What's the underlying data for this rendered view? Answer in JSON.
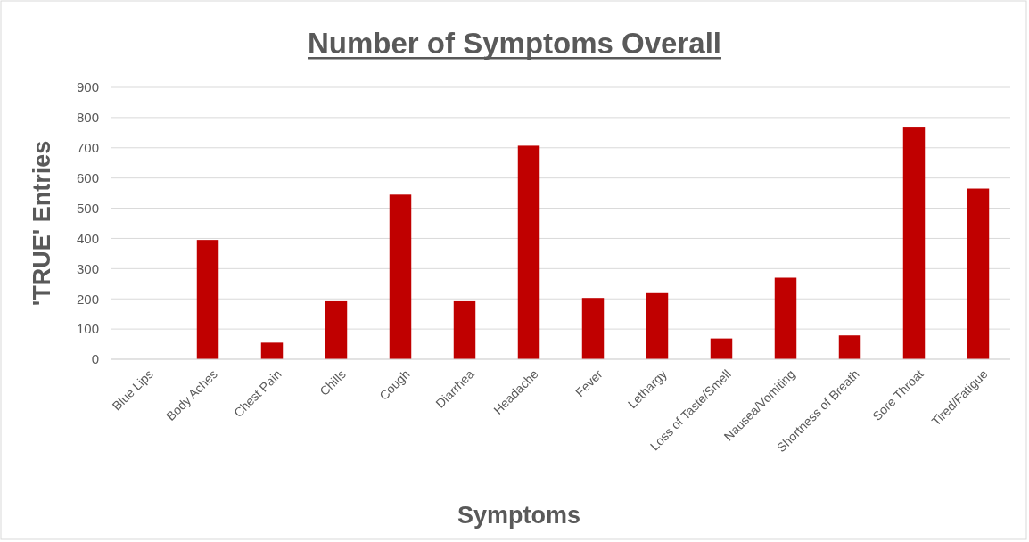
{
  "chart_data": {
    "type": "bar",
    "title": "Number of Symptoms Overall",
    "xlabel": "Symptoms",
    "ylabel": "'TRUE' Entries",
    "categories": [
      "Blue Lips",
      "Body Aches",
      "Chest Pain",
      "Chills",
      "Cough",
      "Diarrhea",
      "Headache",
      "Fever",
      "Lethargy",
      "Loss of Taste/Smell",
      "Nausea/Vomiting",
      "Shortness of Breath",
      "Sore Throat",
      "Tired/Fatigue"
    ],
    "values": [
      0,
      395,
      55,
      192,
      545,
      192,
      707,
      203,
      219,
      69,
      270,
      79,
      767,
      565
    ],
    "color": "#c00000",
    "ylim": [
      0,
      900
    ],
    "yticks": [
      0,
      100,
      200,
      300,
      400,
      500,
      600,
      700,
      800,
      900
    ],
    "grid": "y"
  }
}
